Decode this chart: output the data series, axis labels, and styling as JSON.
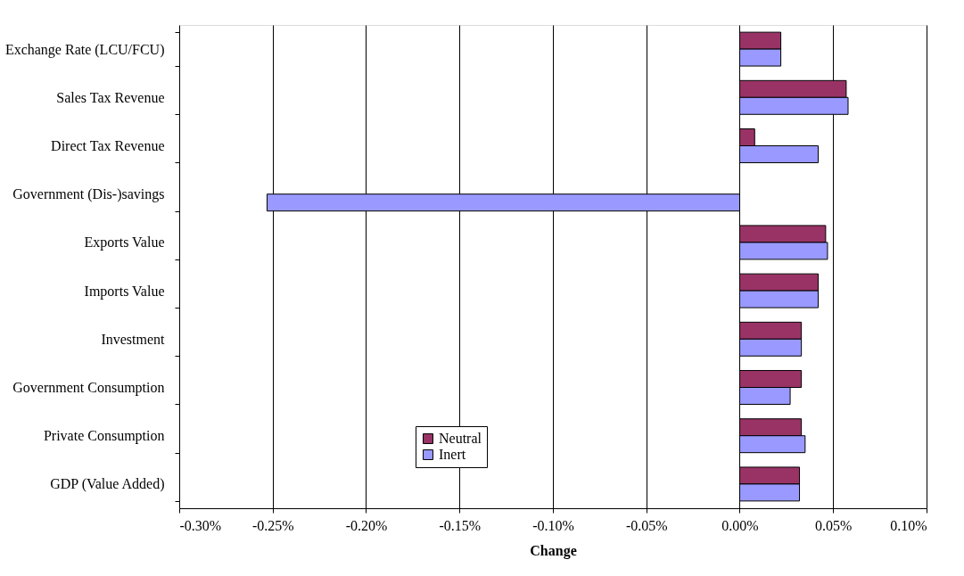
{
  "chart_data": {
    "type": "bar",
    "orientation": "horizontal",
    "xlabel": "Change",
    "categories": [
      "Exchange Rate (LCU/FCU)",
      "Sales Tax Revenue",
      "Direct Tax Revenue",
      "Government (Dis-)savings",
      "Exports Value",
      "Imports Value",
      "Investment",
      "Government Consumption",
      "Private Consumption",
      "GDP (Value Added)"
    ],
    "series": [
      {
        "name": "Neutral",
        "color": "#993366",
        "values": [
          0.022,
          0.057,
          0.008,
          null,
          0.046,
          0.042,
          0.033,
          0.033,
          0.033,
          0.032
        ]
      },
      {
        "name": "Inert",
        "color": "#9999ff",
        "values": [
          0.022,
          0.058,
          0.042,
          -0.253,
          0.047,
          0.042,
          0.033,
          0.027,
          0.035,
          0.032
        ]
      }
    ],
    "xlim": [
      -0.3,
      0.1
    ],
    "xticks": [
      {
        "value": -0.3,
        "label": "-0.30%"
      },
      {
        "value": -0.25,
        "label": "-0.25%"
      },
      {
        "value": -0.2,
        "label": "-0.20%"
      },
      {
        "value": -0.15,
        "label": "-0.15%"
      },
      {
        "value": -0.1,
        "label": "-0.10%"
      },
      {
        "value": -0.05,
        "label": "-0.05%"
      },
      {
        "value": 0,
        "label": "0.00%"
      },
      {
        "value": 0.05,
        "label": "0.05%"
      },
      {
        "value": 0.1,
        "label": "0.10%"
      }
    ],
    "grid": "x",
    "legend": "bottom"
  }
}
